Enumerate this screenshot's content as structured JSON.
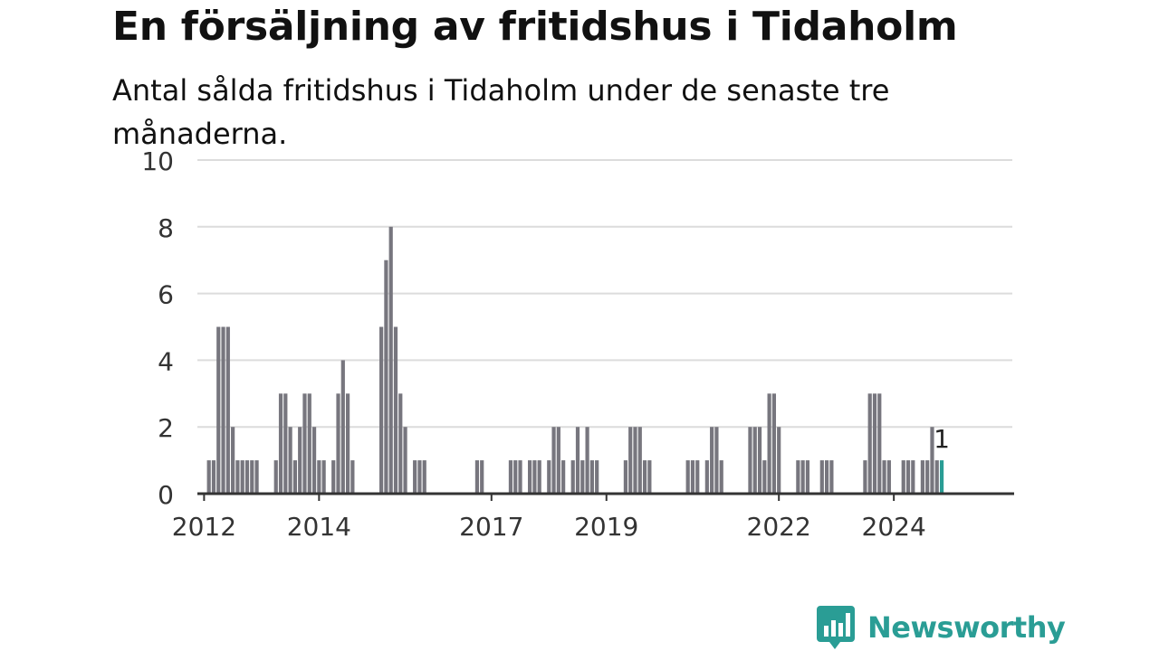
{
  "title": "En försäljning av fritidshus i Tidaholm",
  "subtitle": "Antal sålda fritidshus i Tidaholm under de senaste tre månaderna.",
  "brand": {
    "name": "Newsworthy",
    "color": "#2a9d95",
    "icon": "newsworthy-chart-bubble-icon"
  },
  "chart_data": {
    "type": "bar",
    "title": "En försäljning av fritidshus i Tidaholm",
    "subtitle": "Antal sålda fritidshus i Tidaholm under de senaste tre månaderna.",
    "xlabel": "",
    "ylabel": "",
    "ylim": [
      0,
      10
    ],
    "yticks": [
      0,
      2,
      4,
      6,
      8,
      10
    ],
    "xticks": [
      "2012",
      "2014",
      "2017",
      "2019",
      "2022",
      "2024"
    ],
    "grid": true,
    "legend": "none",
    "bar_color": "#77767e",
    "highlight_color": "#2a9d95",
    "start_month": "2011-12",
    "values": [
      0,
      0,
      1,
      1,
      5,
      5,
      5,
      2,
      1,
      1,
      1,
      1,
      1,
      0,
      0,
      0,
      1,
      3,
      3,
      2,
      1,
      2,
      3,
      3,
      2,
      1,
      1,
      0,
      1,
      3,
      4,
      3,
      1,
      0,
      0,
      0,
      0,
      0,
      5,
      7,
      8,
      5,
      3,
      2,
      0,
      1,
      1,
      1,
      0,
      0,
      0,
      0,
      0,
      0,
      0,
      0,
      0,
      0,
      1,
      1,
      0,
      0,
      0,
      0,
      0,
      1,
      1,
      1,
      0,
      1,
      1,
      1,
      0,
      1,
      2,
      2,
      1,
      0,
      1,
      2,
      1,
      2,
      1,
      1,
      0,
      0,
      0,
      0,
      0,
      1,
      2,
      2,
      2,
      1,
      1,
      0,
      0,
      0,
      0,
      0,
      0,
      0,
      1,
      1,
      1,
      0,
      1,
      2,
      2,
      1,
      0,
      0,
      0,
      0,
      0,
      2,
      2,
      2,
      1,
      3,
      3,
      2,
      0,
      0,
      0,
      1,
      1,
      1,
      0,
      0,
      1,
      1,
      1,
      0,
      0,
      0,
      0,
      0,
      0,
      1,
      3,
      3,
      3,
      1,
      1,
      0,
      0,
      1,
      1,
      1,
      0,
      1,
      1,
      2,
      1,
      1
    ],
    "highlight_last": true,
    "annotation": {
      "label": "1",
      "value": 1
    }
  }
}
